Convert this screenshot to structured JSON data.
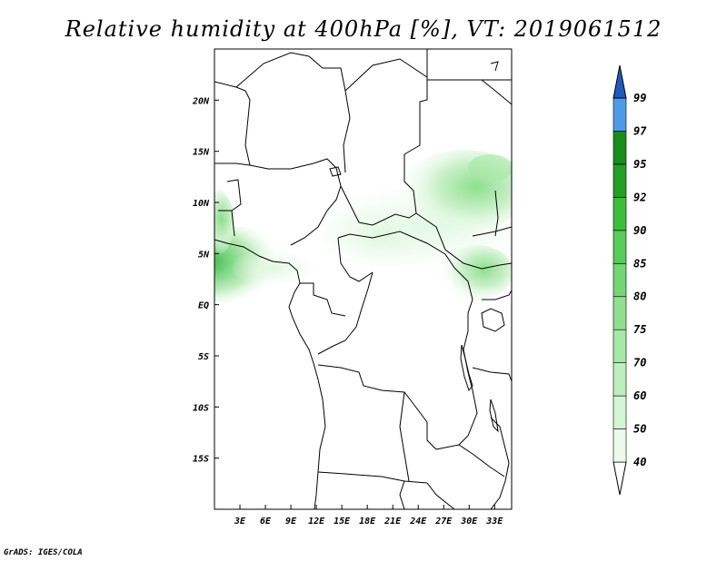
{
  "title": "Relative humidity at 400hPa [%], VT: 2019061512",
  "credit": "GrADS: IGES/COLA",
  "map": {
    "lon_range": [
      0,
      35
    ],
    "lat_range": [
      -20,
      25
    ],
    "x_ticks": [
      "3E",
      "6E",
      "9E",
      "12E",
      "15E",
      "18E",
      "21E",
      "24E",
      "27E",
      "30E",
      "33E"
    ],
    "y_ticks": [
      "20N",
      "15N",
      "10N",
      "5N",
      "EQ",
      "5S",
      "10S",
      "15S"
    ]
  },
  "colorbar": {
    "levels": [
      "40",
      "50",
      "60",
      "70",
      "75",
      "80",
      "85",
      "90",
      "92",
      "95",
      "97",
      "99"
    ],
    "colors": [
      "#eafbea",
      "#d4f5d4",
      "#bdeebd",
      "#a6e7a6",
      "#8edf8e",
      "#73d673",
      "#57cc57",
      "#3bbf3b",
      "#239f23",
      "#1a8c1a",
      "#4c9be8",
      "#2f78d6",
      "#1f5bbd"
    ]
  }
}
